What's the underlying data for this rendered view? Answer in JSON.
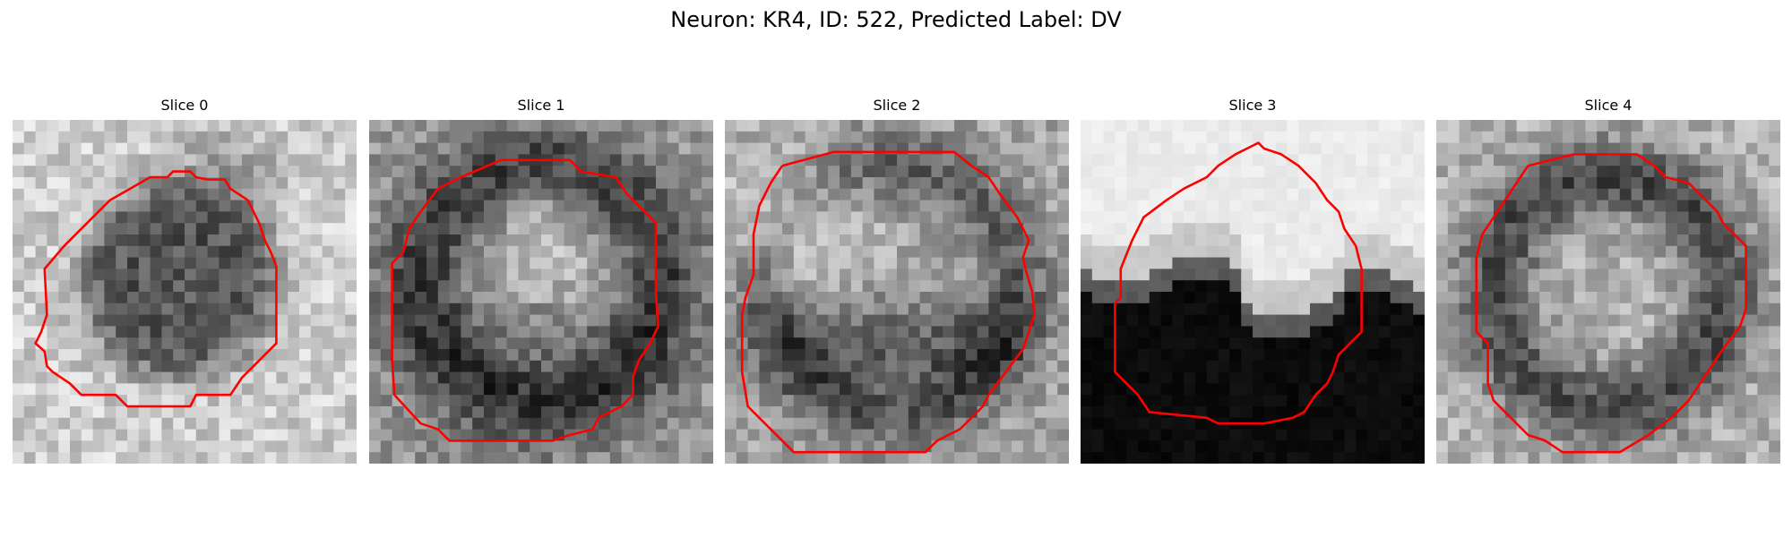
{
  "figure": {
    "title": "Neuron: KR4, ID: 522, Predicted Label: DV"
  },
  "panels": [
    {
      "title": "Slice 0",
      "image": "grayscale-microscopy-slice-with-red-contour"
    },
    {
      "title": "Slice 1",
      "image": "grayscale-microscopy-slice-with-red-contour"
    },
    {
      "title": "Slice 2",
      "image": "grayscale-microscopy-slice-with-red-contour"
    },
    {
      "title": "Slice 3",
      "image": "grayscale-microscopy-slice-with-red-contour"
    },
    {
      "title": "Slice 4",
      "image": "grayscale-microscopy-slice-with-red-contour"
    }
  ],
  "colors": {
    "contour": "#ff0000",
    "background": "#ffffff"
  }
}
